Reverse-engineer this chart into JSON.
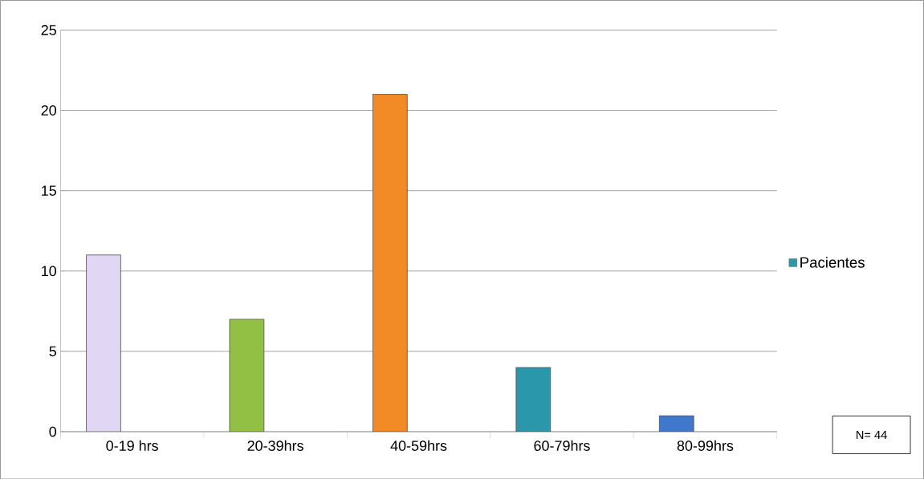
{
  "chart_data": {
    "type": "bar",
    "categories": [
      "0-19 hrs",
      "20-39hrs",
      "40-59hrs",
      "60-79hrs",
      "80-99hrs"
    ],
    "series": [
      {
        "name": "Pacientes",
        "color": "#2b97aa",
        "colors": [
          "#e2d6f5",
          "#92c044",
          "#f28b25",
          "#2b97aa",
          "#3f78cc"
        ],
        "values": [
          11,
          7,
          21,
          4,
          1
        ]
      }
    ],
    "ylim": [
      0,
      25
    ],
    "yticks": [
      0,
      5,
      10,
      15,
      20,
      25
    ],
    "grid": "y",
    "legend": "right",
    "annotations": [
      "N= 44"
    ]
  }
}
